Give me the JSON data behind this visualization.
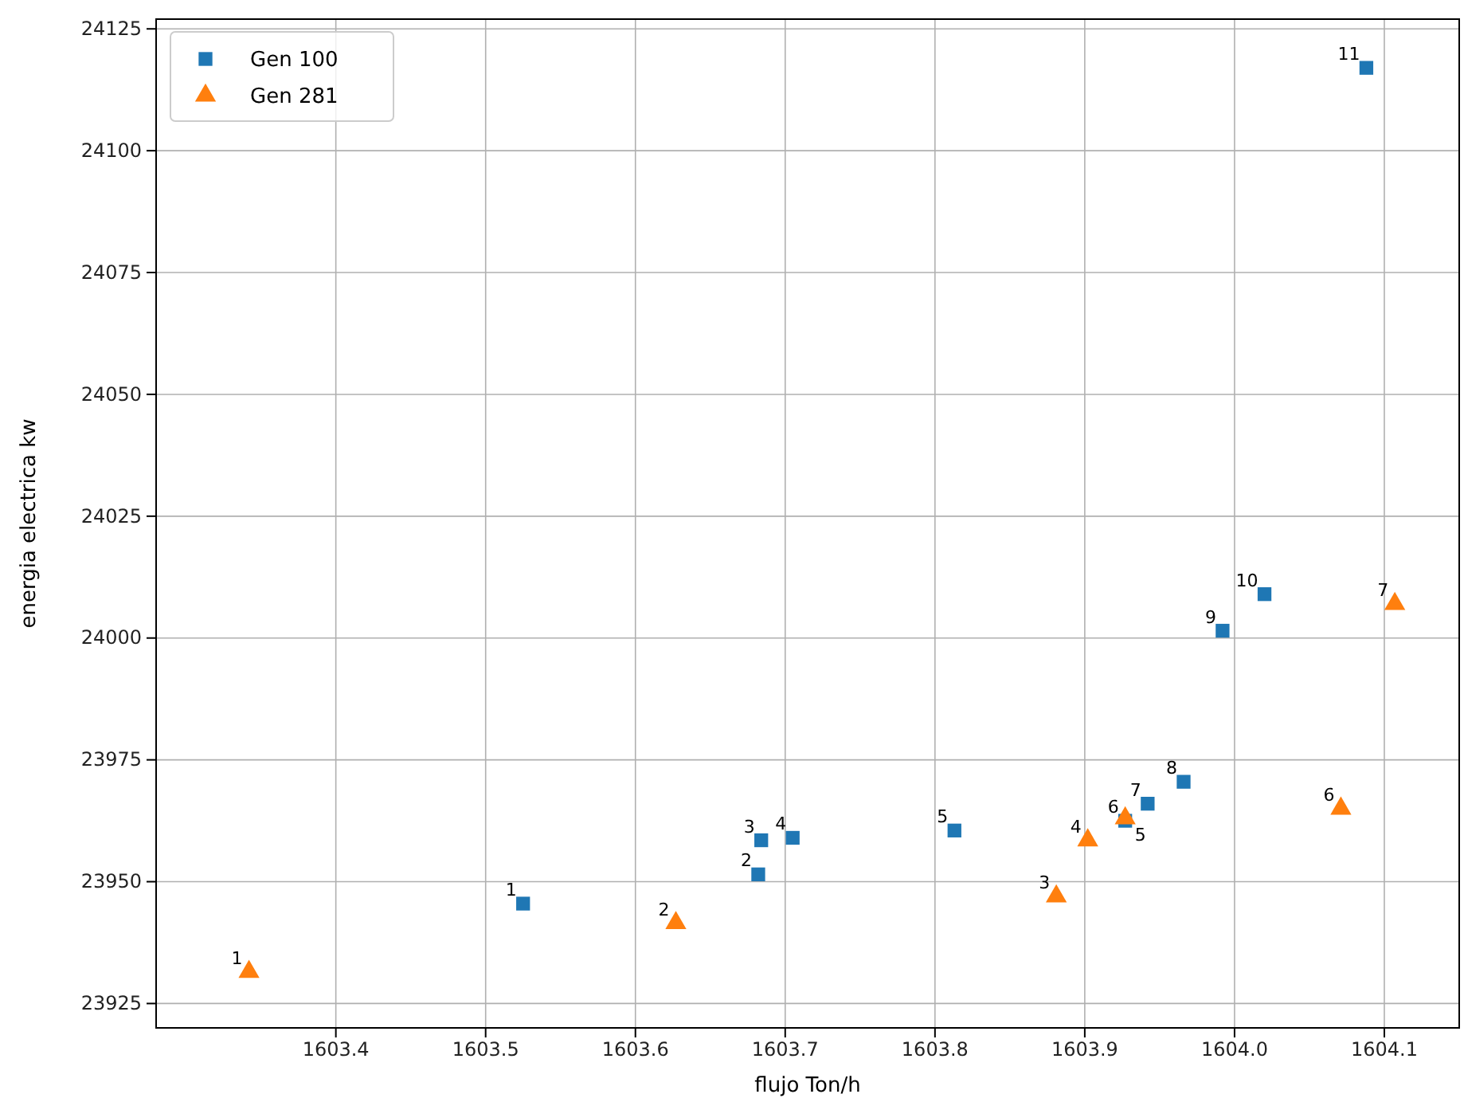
{
  "chart_data": {
    "type": "scatter",
    "xlabel": "flujo Ton/h",
    "ylabel": "energia electrica kw",
    "xlim": [
      1603.28,
      1604.15
    ],
    "xticks": [
      {
        "value": 1603.4,
        "label": "1603.4"
      },
      {
        "value": 1603.5,
        "label": "1603.5"
      },
      {
        "value": 1603.6,
        "label": "1603.6"
      },
      {
        "value": 1603.7,
        "label": "1603.7"
      },
      {
        "value": 1603.8,
        "label": "1603.8"
      },
      {
        "value": 1603.9,
        "label": "1603.9"
      },
      {
        "value": 1604.0,
        "label": "1604.0"
      },
      {
        "value": 1604.1,
        "label": "1604.1"
      }
    ],
    "ylim": [
      23920,
      24127
    ],
    "yticks": [
      23925,
      23950,
      23975,
      24000,
      24025,
      24050,
      24075,
      24100,
      24125
    ],
    "grid": true,
    "legend": "top left",
    "series": [
      {
        "name": "Gen 100",
        "color": "#1f77b4",
        "marker": "square",
        "x": [
          1603.525,
          1603.682,
          1603.684,
          1603.705,
          1603.813,
          1603.927,
          1603.942,
          1603.966,
          1603.992,
          1604.02,
          1604.088
        ],
        "values": [
          23945.5,
          23951.5,
          23958.5,
          23959,
          23960.5,
          23962.5,
          23966,
          23970.5,
          24001.5,
          24009,
          24117
        ]
      },
      {
        "name": "Gen 281",
        "color": "#ff7f0e",
        "marker": "triangle",
        "x": [
          1603.342,
          1603.627,
          1603.881,
          1603.902,
          1603.927,
          1604.071,
          1604.107
        ],
        "values": [
          23931.5,
          23941.5,
          23947,
          23958.5,
          23963,
          23965,
          24007
        ]
      }
    ],
    "annotations": [
      {
        "text": "1",
        "x": 1603.525,
        "y": 23945.5
      },
      {
        "text": "2",
        "x": 1603.682,
        "y": 23951.5
      },
      {
        "text": "3",
        "x": 1603.684,
        "y": 23958.5
      },
      {
        "text": "4",
        "x": 1603.705,
        "y": 23959
      },
      {
        "text": "5",
        "x": 1603.813,
        "y": 23960.5
      },
      {
        "text": "6",
        "x": 1603.927,
        "y": 23962.5
      },
      {
        "text": "7",
        "x": 1603.942,
        "y": 23966
      },
      {
        "text": "8",
        "x": 1603.966,
        "y": 23970.5
      },
      {
        "text": "9",
        "x": 1603.992,
        "y": 24001.5
      },
      {
        "text": "10",
        "x": 1604.02,
        "y": 24009
      },
      {
        "text": "11",
        "x": 1604.088,
        "y": 24117
      },
      {
        "text": "1",
        "x": 1603.342,
        "y": 23931.5
      },
      {
        "text": "2",
        "x": 1603.627,
        "y": 23941.5
      },
      {
        "text": "3",
        "x": 1603.881,
        "y": 23947
      },
      {
        "text": "4",
        "x": 1603.902,
        "y": 23958.5
      },
      {
        "text": "5",
        "x": 1603.927,
        "y": 23963
      },
      {
        "text": "6",
        "x": 1604.071,
        "y": 23965
      },
      {
        "text": "7",
        "x": 1604.107,
        "y": 24007
      }
    ]
  }
}
